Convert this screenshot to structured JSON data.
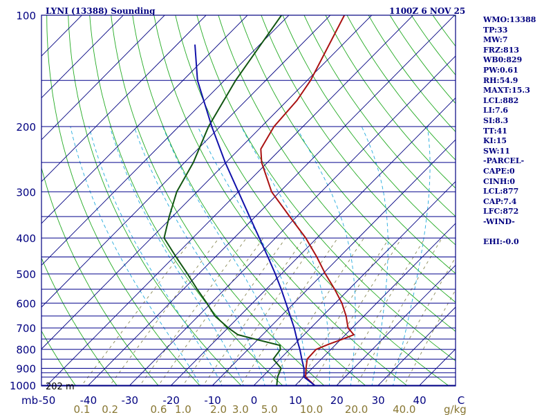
{
  "header": {
    "title": "LYNI (13388) Sounding",
    "time": "1100Z  6 NOV 25"
  },
  "station_label": "202 m",
  "pressure_unit": "mb",
  "mixing_ratio_unit": "g/kg",
  "stats": [
    "WMO:13388",
    "TP:33",
    "MW:7",
    "FRZ:813",
    "WB0:829",
    "PW:0.61",
    "RH:54.9",
    "MAXT:15.3",
    "LCL:882",
    "LI:7.6",
    "SI:8.3",
    "TT:41",
    "KI:15",
    "SW:11",
    "-PARCEL-",
    "CAPE:0",
    "CINH:0",
    "LCL:877",
    "CAP:7.4",
    "LFC:872",
    "-WIND-",
    "",
    "EHI:-0.0"
  ],
  "colors": {
    "frame": "#000080",
    "isobar": "#00008b",
    "isotherm": "#000080",
    "dry_adiabat": "#22aa22",
    "moist_adiabat": "#22aadd",
    "mixing_ratio": "#888855",
    "temperature": "#aa1111",
    "dewpoint": "#115511",
    "parcel": "#1111aa",
    "tick_label": "#000080",
    "mixing_label": "#887733"
  },
  "chart_data": {
    "type": "line",
    "chart_kind": "skew-T log-p sounding",
    "y_axis": {
      "quantity": "pressure",
      "unit": "mb",
      "scale": "log",
      "range": [
        1000,
        100
      ],
      "tick_labels": [
        "100",
        "200",
        "300",
        "400",
        "500",
        "600",
        "700",
        "800",
        "900",
        "1000"
      ],
      "isobars": [
        100,
        150,
        200,
        250,
        300,
        350,
        400,
        450,
        500,
        550,
        600,
        650,
        700,
        750,
        800,
        850,
        900,
        925,
        950,
        1000
      ]
    },
    "x_axis": {
      "quantity": "temperature",
      "unit": "C",
      "range": [
        -50,
        50
      ],
      "tick_labels": [
        "-50",
        "-40",
        "-30",
        "-20",
        "-10",
        "0",
        "10",
        "20",
        "30",
        "40",
        "C"
      ],
      "tick_values": [
        -50,
        -40,
        -30,
        -20,
        -10,
        0,
        10,
        20,
        30,
        40,
        50
      ]
    },
    "mixing_ratio_labels": [
      "0.1",
      "0.2",
      "0.6",
      "1.0",
      "2.0",
      "3.0",
      "5.0",
      "10.0",
      "20.0",
      "40.0"
    ],
    "mixing_ratio_values": [
      0.1,
      0.2,
      0.6,
      1.0,
      2.0,
      3.0,
      5.0,
      10.0,
      20.0,
      40.0
    ],
    "series": [
      {
        "name": "temperature",
        "points": [
          [
            1000,
            14.6
          ],
          [
            950,
            10.5
          ],
          [
            925,
            9.5
          ],
          [
            900,
            8.5
          ],
          [
            850,
            6.6
          ],
          [
            800,
            6.4
          ],
          [
            775,
            8.2
          ],
          [
            750,
            10.4
          ],
          [
            730,
            12.0
          ],
          [
            700,
            9.0
          ],
          [
            650,
            5.7
          ],
          [
            600,
            1.6
          ],
          [
            550,
            -3.5
          ],
          [
            500,
            -9.4
          ],
          [
            450,
            -15.5
          ],
          [
            400,
            -22.7
          ],
          [
            350,
            -31.7
          ],
          [
            300,
            -42.0
          ],
          [
            250,
            -51.4
          ],
          [
            230,
            -54.8
          ],
          [
            200,
            -57.0
          ],
          [
            170,
            -57.7
          ],
          [
            150,
            -59.2
          ],
          [
            100,
            -66.6
          ]
        ]
      },
      {
        "name": "dewpoint",
        "points": [
          [
            1000,
            5.5
          ],
          [
            950,
            3.7
          ],
          [
            900,
            2.5
          ],
          [
            850,
            -1.6
          ],
          [
            800,
            -2.2
          ],
          [
            780,
            -3.3
          ],
          [
            750,
            -10.9
          ],
          [
            730,
            -16.0
          ],
          [
            700,
            -19.9
          ],
          [
            650,
            -26.0
          ],
          [
            600,
            -31.0
          ],
          [
            550,
            -36.7
          ],
          [
            500,
            -42.7
          ],
          [
            450,
            -49.5
          ],
          [
            400,
            -56.9
          ],
          [
            350,
            -60.8
          ],
          [
            300,
            -64.9
          ],
          [
            250,
            -67.9
          ],
          [
            200,
            -72.8
          ],
          [
            150,
            -77.3
          ],
          [
            100,
            -81.8
          ]
        ]
      },
      {
        "name": "parcel",
        "points": [
          [
            1000,
            14.6
          ],
          [
            950,
            10.1
          ],
          [
            900,
            8.0
          ],
          [
            850,
            5.3
          ],
          [
            800,
            2.5
          ],
          [
            750,
            -0.7
          ],
          [
            700,
            -4.0
          ],
          [
            650,
            -7.8
          ],
          [
            600,
            -11.9
          ],
          [
            550,
            -16.4
          ],
          [
            500,
            -21.5
          ],
          [
            450,
            -27.3
          ],
          [
            400,
            -33.9
          ],
          [
            350,
            -41.4
          ],
          [
            300,
            -50.0
          ],
          [
            250,
            -60.2
          ],
          [
            200,
            -72.0
          ],
          [
            150,
            -86.5
          ],
          [
            120,
            -95.7
          ]
        ]
      }
    ]
  }
}
